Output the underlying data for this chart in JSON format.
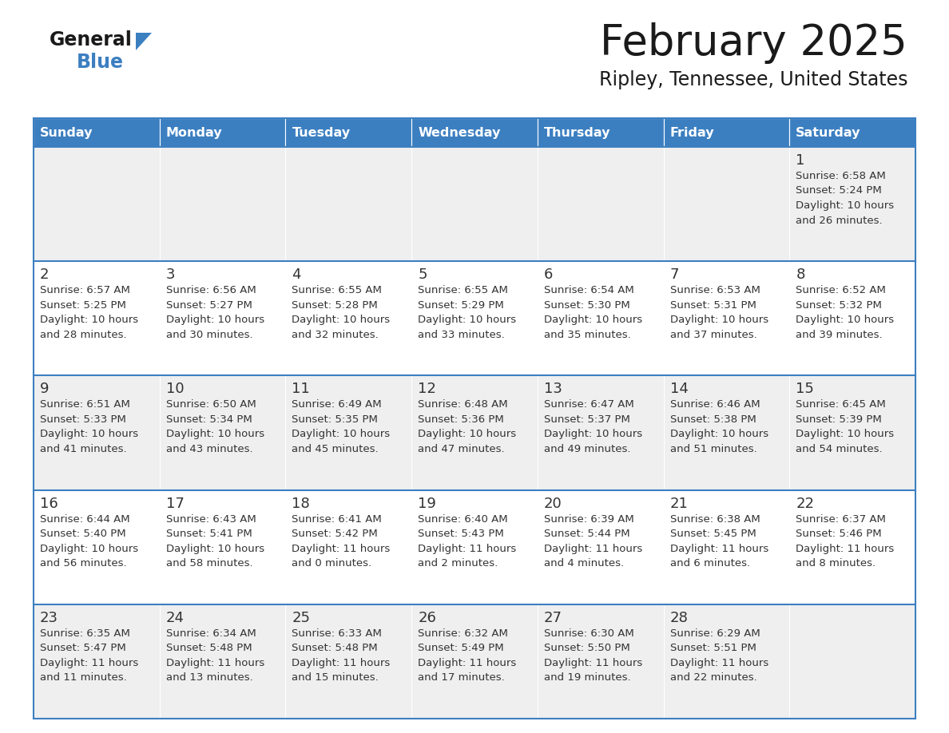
{
  "title": "February 2025",
  "subtitle": "Ripley, Tennessee, United States",
  "header_color": "#3C7FC1",
  "header_text_color": "#FFFFFF",
  "day_names": [
    "Sunday",
    "Monday",
    "Tuesday",
    "Wednesday",
    "Thursday",
    "Friday",
    "Saturday"
  ],
  "row_colors": [
    "#EFEFEF",
    "#FFFFFF",
    "#EFEFEF",
    "#FFFFFF",
    "#EFEFEF"
  ],
  "border_color": "#3C7FC1",
  "text_color": "#333333",
  "date_color": "#333333",
  "logo_general_color": "#1A1A1A",
  "logo_blue_color": "#3C7FC1",
  "weeks": [
    [
      {
        "day": "",
        "sunrise": "",
        "sunset": "",
        "daylight_line1": "",
        "daylight_line2": ""
      },
      {
        "day": "",
        "sunrise": "",
        "sunset": "",
        "daylight_line1": "",
        "daylight_line2": ""
      },
      {
        "day": "",
        "sunrise": "",
        "sunset": "",
        "daylight_line1": "",
        "daylight_line2": ""
      },
      {
        "day": "",
        "sunrise": "",
        "sunset": "",
        "daylight_line1": "",
        "daylight_line2": ""
      },
      {
        "day": "",
        "sunrise": "",
        "sunset": "",
        "daylight_line1": "",
        "daylight_line2": ""
      },
      {
        "day": "",
        "sunrise": "",
        "sunset": "",
        "daylight_line1": "",
        "daylight_line2": ""
      },
      {
        "day": "1",
        "sunrise": "Sunrise: 6:58 AM",
        "sunset": "Sunset: 5:24 PM",
        "daylight_line1": "Daylight: 10 hours",
        "daylight_line2": "and 26 minutes."
      }
    ],
    [
      {
        "day": "2",
        "sunrise": "Sunrise: 6:57 AM",
        "sunset": "Sunset: 5:25 PM",
        "daylight_line1": "Daylight: 10 hours",
        "daylight_line2": "and 28 minutes."
      },
      {
        "day": "3",
        "sunrise": "Sunrise: 6:56 AM",
        "sunset": "Sunset: 5:27 PM",
        "daylight_line1": "Daylight: 10 hours",
        "daylight_line2": "and 30 minutes."
      },
      {
        "day": "4",
        "sunrise": "Sunrise: 6:55 AM",
        "sunset": "Sunset: 5:28 PM",
        "daylight_line1": "Daylight: 10 hours",
        "daylight_line2": "and 32 minutes."
      },
      {
        "day": "5",
        "sunrise": "Sunrise: 6:55 AM",
        "sunset": "Sunset: 5:29 PM",
        "daylight_line1": "Daylight: 10 hours",
        "daylight_line2": "and 33 minutes."
      },
      {
        "day": "6",
        "sunrise": "Sunrise: 6:54 AM",
        "sunset": "Sunset: 5:30 PM",
        "daylight_line1": "Daylight: 10 hours",
        "daylight_line2": "and 35 minutes."
      },
      {
        "day": "7",
        "sunrise": "Sunrise: 6:53 AM",
        "sunset": "Sunset: 5:31 PM",
        "daylight_line1": "Daylight: 10 hours",
        "daylight_line2": "and 37 minutes."
      },
      {
        "day": "8",
        "sunrise": "Sunrise: 6:52 AM",
        "sunset": "Sunset: 5:32 PM",
        "daylight_line1": "Daylight: 10 hours",
        "daylight_line2": "and 39 minutes."
      }
    ],
    [
      {
        "day": "9",
        "sunrise": "Sunrise: 6:51 AM",
        "sunset": "Sunset: 5:33 PM",
        "daylight_line1": "Daylight: 10 hours",
        "daylight_line2": "and 41 minutes."
      },
      {
        "day": "10",
        "sunrise": "Sunrise: 6:50 AM",
        "sunset": "Sunset: 5:34 PM",
        "daylight_line1": "Daylight: 10 hours",
        "daylight_line2": "and 43 minutes."
      },
      {
        "day": "11",
        "sunrise": "Sunrise: 6:49 AM",
        "sunset": "Sunset: 5:35 PM",
        "daylight_line1": "Daylight: 10 hours",
        "daylight_line2": "and 45 minutes."
      },
      {
        "day": "12",
        "sunrise": "Sunrise: 6:48 AM",
        "sunset": "Sunset: 5:36 PM",
        "daylight_line1": "Daylight: 10 hours",
        "daylight_line2": "and 47 minutes."
      },
      {
        "day": "13",
        "sunrise": "Sunrise: 6:47 AM",
        "sunset": "Sunset: 5:37 PM",
        "daylight_line1": "Daylight: 10 hours",
        "daylight_line2": "and 49 minutes."
      },
      {
        "day": "14",
        "sunrise": "Sunrise: 6:46 AM",
        "sunset": "Sunset: 5:38 PM",
        "daylight_line1": "Daylight: 10 hours",
        "daylight_line2": "and 51 minutes."
      },
      {
        "day": "15",
        "sunrise": "Sunrise: 6:45 AM",
        "sunset": "Sunset: 5:39 PM",
        "daylight_line1": "Daylight: 10 hours",
        "daylight_line2": "and 54 minutes."
      }
    ],
    [
      {
        "day": "16",
        "sunrise": "Sunrise: 6:44 AM",
        "sunset": "Sunset: 5:40 PM",
        "daylight_line1": "Daylight: 10 hours",
        "daylight_line2": "and 56 minutes."
      },
      {
        "day": "17",
        "sunrise": "Sunrise: 6:43 AM",
        "sunset": "Sunset: 5:41 PM",
        "daylight_line1": "Daylight: 10 hours",
        "daylight_line2": "and 58 minutes."
      },
      {
        "day": "18",
        "sunrise": "Sunrise: 6:41 AM",
        "sunset": "Sunset: 5:42 PM",
        "daylight_line1": "Daylight: 11 hours",
        "daylight_line2": "and 0 minutes."
      },
      {
        "day": "19",
        "sunrise": "Sunrise: 6:40 AM",
        "sunset": "Sunset: 5:43 PM",
        "daylight_line1": "Daylight: 11 hours",
        "daylight_line2": "and 2 minutes."
      },
      {
        "day": "20",
        "sunrise": "Sunrise: 6:39 AM",
        "sunset": "Sunset: 5:44 PM",
        "daylight_line1": "Daylight: 11 hours",
        "daylight_line2": "and 4 minutes."
      },
      {
        "day": "21",
        "sunrise": "Sunrise: 6:38 AM",
        "sunset": "Sunset: 5:45 PM",
        "daylight_line1": "Daylight: 11 hours",
        "daylight_line2": "and 6 minutes."
      },
      {
        "day": "22",
        "sunrise": "Sunrise: 6:37 AM",
        "sunset": "Sunset: 5:46 PM",
        "daylight_line1": "Daylight: 11 hours",
        "daylight_line2": "and 8 minutes."
      }
    ],
    [
      {
        "day": "23",
        "sunrise": "Sunrise: 6:35 AM",
        "sunset": "Sunset: 5:47 PM",
        "daylight_line1": "Daylight: 11 hours",
        "daylight_line2": "and 11 minutes."
      },
      {
        "day": "24",
        "sunrise": "Sunrise: 6:34 AM",
        "sunset": "Sunset: 5:48 PM",
        "daylight_line1": "Daylight: 11 hours",
        "daylight_line2": "and 13 minutes."
      },
      {
        "day": "25",
        "sunrise": "Sunrise: 6:33 AM",
        "sunset": "Sunset: 5:48 PM",
        "daylight_line1": "Daylight: 11 hours",
        "daylight_line2": "and 15 minutes."
      },
      {
        "day": "26",
        "sunrise": "Sunrise: 6:32 AM",
        "sunset": "Sunset: 5:49 PM",
        "daylight_line1": "Daylight: 11 hours",
        "daylight_line2": "and 17 minutes."
      },
      {
        "day": "27",
        "sunrise": "Sunrise: 6:30 AM",
        "sunset": "Sunset: 5:50 PM",
        "daylight_line1": "Daylight: 11 hours",
        "daylight_line2": "and 19 minutes."
      },
      {
        "day": "28",
        "sunrise": "Sunrise: 6:29 AM",
        "sunset": "Sunset: 5:51 PM",
        "daylight_line1": "Daylight: 11 hours",
        "daylight_line2": "and 22 minutes."
      },
      {
        "day": "",
        "sunrise": "",
        "sunset": "",
        "daylight_line1": "",
        "daylight_line2": ""
      }
    ]
  ]
}
